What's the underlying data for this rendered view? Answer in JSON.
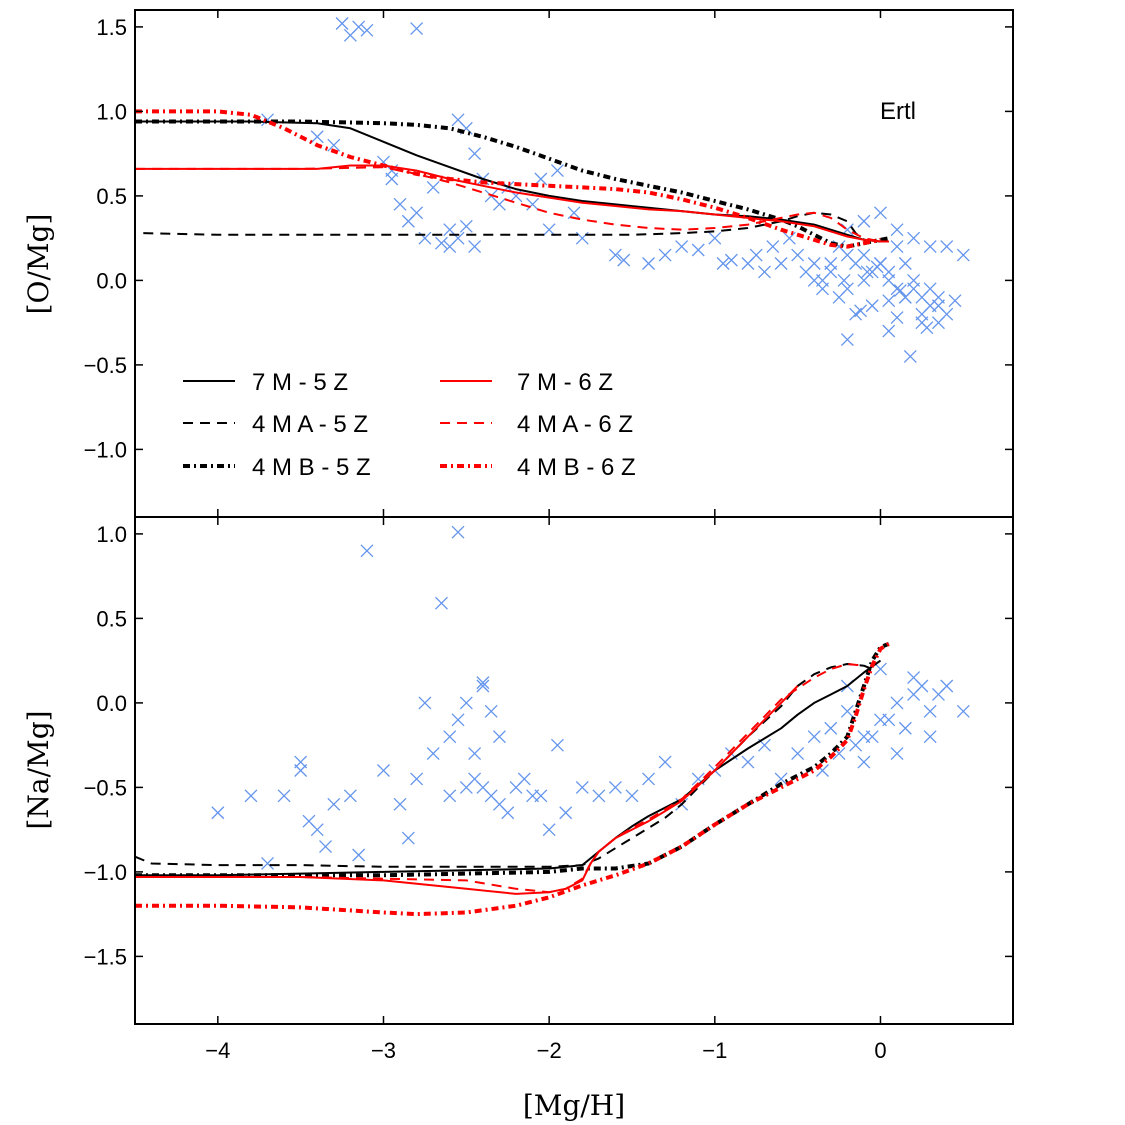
{
  "chart_data": [
    {
      "type": "line",
      "panel": "top",
      "ylabel": "[O/Mg]",
      "xlabel": "",
      "xlim": [
        -4.5,
        0.8
      ],
      "ylim": [
        -1.4,
        1.6
      ],
      "xticks": [
        -4,
        -3,
        -2,
        -1,
        0
      ],
      "xtick_labels": [
        "",
        "",
        "",
        "",
        ""
      ],
      "yticks": [
        1.5,
        1.0,
        0.5,
        0.0,
        -0.5,
        -1.0
      ],
      "ytick_labels": [
        "1.5",
        "1.0",
        "0.5",
        "0.0",
        "−0.5",
        "−1.0"
      ],
      "annotation": "Ertl",
      "legend_location": "lower-left",
      "observations": {
        "marker": "x",
        "color": "#6495ED",
        "x": [
          -3.25,
          -3.2,
          -3.15,
          -3.1,
          -2.8,
          -3.7,
          -3.4,
          -2.95,
          -2.9,
          -2.85,
          -2.75,
          -2.6,
          -2.55,
          -2.5,
          -2.45,
          -2.4,
          -2.35,
          -2.3,
          -2.25,
          -2.2,
          -2.1,
          -2.05,
          -1.95,
          -1.85,
          -2.6,
          -2.65,
          -2.55,
          -2.5,
          -2.45,
          -2.7,
          -2.8,
          -3.0,
          -2.95,
          -3.3,
          -2.0,
          -1.8,
          -1.6,
          -1.55,
          -1.4,
          -1.3,
          -1.2,
          -1.1,
          -1.0,
          -0.95,
          -0.9,
          -0.8,
          -0.75,
          -0.7,
          -0.65,
          -0.6,
          -0.55,
          -0.5,
          -0.45,
          -0.4,
          -0.35,
          -0.3,
          -0.25,
          -0.2,
          -0.15,
          -0.1,
          -0.05,
          0.0,
          0.05,
          0.1,
          0.15,
          0.2,
          0.25,
          0.3,
          0.35,
          0.4,
          0.45,
          0.5,
          -0.2,
          -0.1,
          0.0,
          0.1,
          0.2,
          0.3,
          -0.3,
          -0.25,
          -0.15,
          -0.05,
          0.05,
          0.15,
          0.25,
          0.35,
          -0.4,
          -0.35,
          -0.2,
          0.0,
          0.1,
          0.2,
          0.3,
          -0.1,
          0.05,
          -0.2,
          0.15,
          0.25,
          0.35,
          -0.22,
          0.05,
          0.4,
          -0.12,
          0.18,
          -0.08,
          0.1,
          0.28,
          -0.02,
          0.12
        ],
        "y": [
          1.52,
          1.45,
          1.5,
          1.48,
          1.49,
          0.95,
          0.85,
          0.6,
          0.45,
          0.35,
          0.25,
          0.3,
          0.95,
          0.9,
          0.75,
          0.6,
          0.5,
          0.45,
          0.55,
          0.5,
          0.45,
          0.6,
          0.65,
          0.4,
          0.2,
          0.22,
          0.25,
          0.32,
          0.2,
          0.55,
          0.4,
          0.7,
          0.65,
          0.8,
          0.3,
          0.25,
          0.15,
          0.12,
          0.1,
          0.15,
          0.2,
          0.18,
          0.25,
          0.1,
          0.12,
          0.1,
          0.15,
          0.05,
          0.2,
          0.1,
          0.25,
          0.15,
          0.05,
          0.1,
          0.0,
          0.05,
          0.2,
          0.15,
          0.1,
          0.0,
          0.05,
          0.1,
          0.0,
          -0.05,
          -0.1,
          0.0,
          -0.1,
          -0.05,
          -0.15,
          -0.2,
          -0.12,
          0.15,
          0.3,
          0.35,
          0.4,
          0.3,
          0.25,
          0.2,
          0.1,
          -0.1,
          -0.2,
          -0.15,
          0.05,
          -0.1,
          -0.2,
          -0.25,
          0.0,
          -0.05,
          -0.05,
          0.1,
          0.2,
          -0.05,
          -0.15,
          0.15,
          -0.3,
          -0.35,
          0.1,
          -0.25,
          -0.1,
          0.0,
          -0.12,
          0.2,
          -0.18,
          -0.45,
          0.05,
          -0.22,
          -0.28,
          0.08,
          -0.06
        ]
      },
      "series": [
        {
          "name": "7 M - 5 Z",
          "color": "#000000",
          "style": "solid",
          "x": [
            -4.5,
            -3.8,
            -3.4,
            -3.2,
            -3.0,
            -2.8,
            -2.6,
            -2.4,
            -2.2,
            -2.0,
            -1.8,
            -1.6,
            -1.4,
            -1.2,
            -1.0,
            -0.8,
            -0.6,
            -0.4,
            -0.3,
            -0.2,
            -0.1,
            0.0,
            0.05
          ],
          "y": [
            0.94,
            0.94,
            0.93,
            0.9,
            0.82,
            0.74,
            0.67,
            0.6,
            0.54,
            0.5,
            0.47,
            0.45,
            0.43,
            0.41,
            0.39,
            0.38,
            0.36,
            0.33,
            0.3,
            0.27,
            0.24,
            0.23,
            0.23
          ]
        },
        {
          "name": "4 M A - 5 Z",
          "color": "#000000",
          "style": "dashed",
          "x": [
            -4.45,
            -4.0,
            -3.5,
            -3.0,
            -2.5,
            -2.0,
            -1.5,
            -1.2,
            -1.0,
            -0.8,
            -0.6,
            -0.5,
            -0.4,
            -0.3,
            -0.2,
            -0.15,
            -0.1,
            0.0
          ],
          "y": [
            0.28,
            0.27,
            0.27,
            0.27,
            0.27,
            0.27,
            0.27,
            0.28,
            0.29,
            0.31,
            0.35,
            0.38,
            0.4,
            0.39,
            0.35,
            0.28,
            0.24,
            0.23
          ]
        },
        {
          "name": "4 M B - 5 Z",
          "color": "#000000",
          "style": "dashdot",
          "x": [
            -4.5,
            -4.0,
            -3.5,
            -3.0,
            -2.8,
            -2.6,
            -2.4,
            -2.2,
            -2.0,
            -1.8,
            -1.6,
            -1.4,
            -1.2,
            -1.0,
            -0.8,
            -0.6,
            -0.5,
            -0.4,
            -0.3,
            -0.2,
            -0.1,
            0.0,
            0.05
          ],
          "y": [
            0.94,
            0.94,
            0.94,
            0.93,
            0.92,
            0.9,
            0.85,
            0.79,
            0.72,
            0.65,
            0.6,
            0.56,
            0.52,
            0.47,
            0.42,
            0.36,
            0.32,
            0.27,
            0.22,
            0.2,
            0.22,
            0.24,
            0.25
          ]
        },
        {
          "name": "7 M - 6 Z",
          "color": "#FF0000",
          "style": "solid",
          "x": [
            -4.5,
            -4.0,
            -3.6,
            -3.4,
            -3.2,
            -3.0,
            -2.8,
            -2.6,
            -2.4,
            -2.2,
            -2.0,
            -1.8,
            -1.6,
            -1.4,
            -1.2,
            -1.0,
            -0.8,
            -0.6,
            -0.4,
            -0.3,
            -0.2,
            -0.1,
            0.0,
            0.05
          ],
          "y": [
            0.66,
            0.66,
            0.66,
            0.66,
            0.68,
            0.68,
            0.65,
            0.6,
            0.56,
            0.52,
            0.49,
            0.46,
            0.44,
            0.42,
            0.41,
            0.39,
            0.37,
            0.35,
            0.32,
            0.29,
            0.26,
            0.24,
            0.23,
            0.23
          ]
        },
        {
          "name": "4 M A - 6 Z",
          "color": "#FF0000",
          "style": "dashed",
          "x": [
            -4.5,
            -4.0,
            -3.5,
            -3.0,
            -2.8,
            -2.6,
            -2.4,
            -2.2,
            -2.0,
            -1.8,
            -1.6,
            -1.4,
            -1.2,
            -1.0,
            -0.8,
            -0.6,
            -0.5,
            -0.4,
            -0.3,
            -0.2,
            -0.1,
            0.0
          ],
          "y": [
            0.66,
            0.66,
            0.66,
            0.67,
            0.63,
            0.58,
            0.52,
            0.46,
            0.4,
            0.36,
            0.33,
            0.31,
            0.3,
            0.31,
            0.33,
            0.37,
            0.39,
            0.4,
            0.37,
            0.3,
            0.25,
            0.23
          ]
        },
        {
          "name": "4 M B - 6 Z",
          "color": "#FF0000",
          "style": "dashdot",
          "x": [
            -4.5,
            -4.0,
            -3.8,
            -3.6,
            -3.4,
            -3.2,
            -3.0,
            -2.8,
            -2.6,
            -2.4,
            -2.2,
            -2.0,
            -1.8,
            -1.6,
            -1.4,
            -1.2,
            -1.0,
            -0.8,
            -0.6,
            -0.4,
            -0.3,
            -0.2,
            -0.1,
            0.0
          ],
          "y": [
            1.0,
            1.0,
            0.98,
            0.9,
            0.8,
            0.73,
            0.68,
            0.63,
            0.6,
            0.58,
            0.57,
            0.56,
            0.55,
            0.54,
            0.52,
            0.48,
            0.43,
            0.37,
            0.3,
            0.24,
            0.21,
            0.2,
            0.22,
            0.24
          ]
        }
      ]
    },
    {
      "type": "line",
      "panel": "bottom",
      "ylabel": "[Na/Mg]",
      "xlabel": "[Mg/H]",
      "xlim": [
        -4.5,
        0.8
      ],
      "ylim": [
        -1.9,
        1.1
      ],
      "xticks": [
        -4,
        -3,
        -2,
        -1,
        0
      ],
      "xtick_labels": [
        "−4",
        "−3",
        "−2",
        "−1",
        "0"
      ],
      "yticks": [
        1.0,
        0.5,
        0.0,
        -0.5,
        -1.0,
        -1.5
      ],
      "ytick_labels": [
        "1.0",
        "0.5",
        "0.0",
        "−0.5",
        "−1.0",
        "−1.5"
      ],
      "observations": {
        "marker": "x",
        "color": "#6495ED",
        "x": [
          -3.1,
          -2.55,
          -2.65,
          -4.0,
          -3.7,
          -3.6,
          -3.5,
          -3.4,
          -3.3,
          -3.2,
          -3.0,
          -2.9,
          -2.8,
          -2.7,
          -2.6,
          -2.5,
          -2.45,
          -2.4,
          -2.35,
          -2.3,
          -2.2,
          -2.1,
          -2.0,
          -1.95,
          -1.9,
          -2.75,
          -2.85,
          -3.15,
          -3.35,
          -3.45,
          -2.55,
          -2.5,
          -2.45,
          -2.4,
          -2.35,
          -2.3,
          -2.25,
          -2.15,
          -2.05,
          -1.8,
          -1.7,
          -1.6,
          -1.5,
          -1.4,
          -1.3,
          -1.2,
          -1.1,
          -1.0,
          -0.9,
          -0.8,
          -0.7,
          -0.6,
          -0.5,
          -0.4,
          -0.3,
          -0.2,
          -0.1,
          0.0,
          0.1,
          0.2,
          0.3,
          0.4,
          0.5,
          -0.25,
          -0.15,
          -0.05,
          0.05,
          0.15,
          0.25,
          0.35,
          -0.35,
          -0.2,
          0.0,
          0.2,
          0.3,
          -0.1,
          0.1,
          -2.6,
          -2.4,
          -3.5,
          -3.8
        ],
        "y": [
          0.9,
          1.01,
          0.59,
          -0.65,
          -0.95,
          -0.55,
          -0.35,
          -0.75,
          -0.6,
          -0.55,
          -0.4,
          -0.6,
          -0.45,
          -0.3,
          -0.2,
          -0.5,
          -0.45,
          0.1,
          -0.55,
          -0.6,
          -0.5,
          -0.55,
          -0.75,
          -0.25,
          -0.65,
          0.0,
          -0.8,
          -0.9,
          -0.85,
          -0.7,
          -0.1,
          0.0,
          -0.3,
          0.12,
          -0.05,
          -0.2,
          -0.65,
          -0.45,
          -0.55,
          -0.5,
          -0.55,
          -0.5,
          -0.55,
          -0.45,
          -0.35,
          -0.6,
          -0.45,
          -0.4,
          -0.3,
          -0.35,
          -0.25,
          -0.45,
          -0.3,
          -0.2,
          -0.15,
          -0.05,
          -0.2,
          -0.1,
          0.0,
          0.05,
          -0.05,
          0.1,
          -0.05,
          -0.3,
          -0.25,
          -0.2,
          -0.1,
          -0.15,
          0.1,
          0.05,
          -0.4,
          0.1,
          0.2,
          0.15,
          -0.2,
          -0.35,
          -0.3,
          -0.55,
          -0.5,
          -0.4,
          -0.55
        ]
      },
      "series": [
        {
          "name": "7 M - 5 Z",
          "color": "#000000",
          "style": "solid",
          "x": [
            -4.5,
            -4.0,
            -3.5,
            -3.0,
            -2.5,
            -2.0,
            -1.8,
            -1.7,
            -1.6,
            -1.5,
            -1.4,
            -1.3,
            -1.2,
            -1.0,
            -0.8,
            -0.6,
            -0.5,
            -0.4,
            -0.3,
            -0.2,
            -0.1,
            0.0
          ],
          "y": [
            -1.02,
            -1.02,
            -1.01,
            -1.0,
            -0.99,
            -0.98,
            -0.96,
            -0.88,
            -0.8,
            -0.73,
            -0.67,
            -0.62,
            -0.57,
            -0.4,
            -0.27,
            -0.15,
            -0.07,
            0.0,
            0.05,
            0.1,
            0.18,
            0.25
          ]
        },
        {
          "name": "4 M A - 5 Z",
          "color": "#000000",
          "style": "dashed",
          "x": [
            -4.5,
            -4.4,
            -4.0,
            -3.5,
            -3.0,
            -2.5,
            -2.0,
            -1.8,
            -1.7,
            -1.6,
            -1.5,
            -1.4,
            -1.3,
            -1.2,
            -1.0,
            -0.8,
            -0.6,
            -0.5,
            -0.4,
            -0.3,
            -0.2,
            -0.1,
            -0.05
          ],
          "y": [
            -0.91,
            -0.95,
            -0.96,
            -0.96,
            -0.97,
            -0.97,
            -0.97,
            -0.96,
            -0.92,
            -0.86,
            -0.8,
            -0.74,
            -0.68,
            -0.6,
            -0.4,
            -0.2,
            -0.02,
            0.1,
            0.17,
            0.21,
            0.23,
            0.22,
            0.2
          ]
        },
        {
          "name": "4 M B - 5 Z",
          "color": "#000000",
          "style": "dashdot",
          "x": [
            -4.5,
            -4.0,
            -3.5,
            -3.0,
            -2.5,
            -2.0,
            -1.8,
            -1.6,
            -1.4,
            -1.2,
            -1.0,
            -0.8,
            -0.6,
            -0.4,
            -0.3,
            -0.2,
            -0.15,
            -0.1,
            -0.05,
            0.0,
            0.05
          ],
          "y": [
            -1.02,
            -1.02,
            -1.02,
            -1.02,
            -1.01,
            -1.0,
            -0.98,
            -0.98,
            -0.95,
            -0.85,
            -0.72,
            -0.6,
            -0.48,
            -0.38,
            -0.3,
            -0.2,
            -0.05,
            0.1,
            0.25,
            0.33,
            0.35
          ]
        },
        {
          "name": "7 M - 6 Z",
          "color": "#FF0000",
          "style": "solid",
          "x": [
            -4.5,
            -4.0,
            -3.5,
            -3.0,
            -2.5,
            -2.2,
            -2.0,
            -1.9,
            -1.8,
            -1.75,
            -1.7,
            -1.6,
            -1.5,
            -1.4,
            -1.3,
            -1.2,
            -1.0,
            -0.8,
            -0.6,
            -0.5
          ],
          "y": [
            -1.03,
            -1.03,
            -1.03,
            -1.05,
            -1.1,
            -1.13,
            -1.12,
            -1.1,
            -1.05,
            -0.95,
            -0.88,
            -0.8,
            -0.75,
            -0.7,
            -0.64,
            -0.58,
            -0.4,
            -0.2,
            0.0,
            0.1
          ]
        },
        {
          "name": "4 M A - 6 Z",
          "color": "#FF0000",
          "style": "dashed",
          "x": [
            -4.5,
            -4.0,
            -3.5,
            -3.0,
            -2.5,
            -2.2,
            -2.0,
            -1.9,
            -1.8,
            -1.75,
            -1.7,
            -1.6,
            -1.5,
            -1.4,
            -1.3,
            -1.2,
            -1.0,
            -0.8,
            -0.6,
            -0.4,
            -0.3,
            -0.2,
            -0.1
          ],
          "y": [
            -1.03,
            -1.03,
            -1.03,
            -1.04,
            -1.05,
            -1.1,
            -1.12,
            -1.1,
            -1.04,
            -0.95,
            -0.88,
            -0.8,
            -0.74,
            -0.69,
            -0.63,
            -0.57,
            -0.38,
            -0.18,
            0.02,
            0.15,
            0.2,
            0.23,
            0.22
          ]
        },
        {
          "name": "4 M B - 6 Z",
          "color": "#FF0000",
          "style": "dashdot",
          "x": [
            -4.5,
            -4.0,
            -3.5,
            -3.0,
            -2.8,
            -2.5,
            -2.2,
            -2.0,
            -1.8,
            -1.6,
            -1.4,
            -1.2,
            -1.0,
            -0.8,
            -0.6,
            -0.4,
            -0.3,
            -0.2,
            -0.15,
            -0.1,
            -0.05,
            0.0,
            0.05
          ],
          "y": [
            -1.2,
            -1.2,
            -1.21,
            -1.24,
            -1.25,
            -1.24,
            -1.2,
            -1.15,
            -1.08,
            -1.02,
            -0.95,
            -0.85,
            -0.72,
            -0.6,
            -0.5,
            -0.4,
            -0.32,
            -0.22,
            -0.08,
            0.08,
            0.22,
            0.32,
            0.35
          ]
        }
      ]
    }
  ]
}
